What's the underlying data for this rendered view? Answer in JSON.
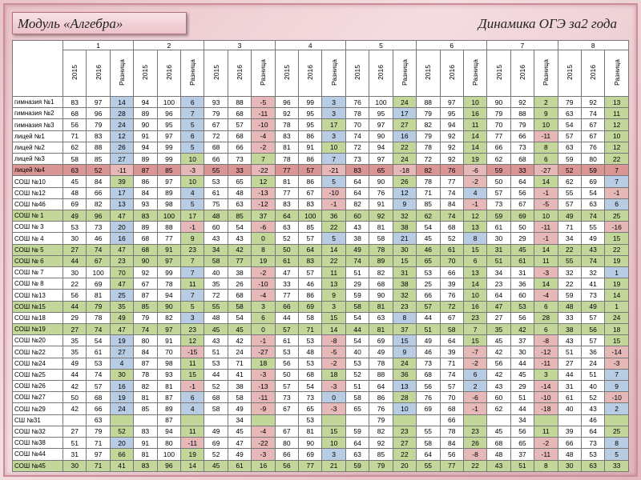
{
  "header": {
    "title": "Модуль «Алгебра»",
    "subtitle": "Динамика ОГЭ за2 года"
  },
  "table": {
    "groups": [
      "1",
      "2",
      "3",
      "4",
      "5",
      "6",
      "7",
      "8"
    ],
    "columns": [
      "2015",
      "2016",
      "Разница"
    ],
    "colors": {
      "positive_high": "#c4d79b",
      "positive_low": "#b8cce4",
      "negative": "#e6b8b7"
    },
    "rows": [
      {
        "name": "гимназия №1",
        "values": [
          83,
          97,
          14,
          94,
          100,
          6,
          93,
          88,
          -5,
          96,
          99,
          3,
          76,
          100,
          24,
          88,
          97,
          10,
          90,
          92,
          2,
          79,
          92,
          13
        ]
      },
      {
        "name": "гимназия №2",
        "values": [
          68,
          96,
          28,
          89,
          96,
          7,
          79,
          68,
          -11,
          92,
          95,
          3,
          78,
          95,
          17,
          79,
          95,
          16,
          79,
          88,
          9,
          63,
          74,
          11
        ]
      },
      {
        "name": "гимназия №3",
        "values": [
          56,
          79,
          24,
          90,
          95,
          5,
          67,
          57,
          -10,
          78,
          95,
          17,
          70,
          97,
          27,
          82,
          94,
          11,
          70,
          79,
          10,
          54,
          67,
          12
        ]
      },
      {
        "name": "лицей №1",
        "values": [
          71,
          83,
          12,
          91,
          97,
          6,
          72,
          68,
          -4,
          83,
          86,
          3,
          74,
          90,
          16,
          79,
          92,
          14,
          77,
          66,
          -11,
          57,
          67,
          10
        ]
      },
      {
        "name": "лицей №2",
        "values": [
          62,
          88,
          26,
          94,
          99,
          5,
          68,
          66,
          -2,
          81,
          91,
          10,
          72,
          94,
          22,
          78,
          92,
          14,
          66,
          73,
          8,
          63,
          76,
          12
        ]
      },
      {
        "name": "лицей №3",
        "values": [
          58,
          85,
          27,
          89,
          99,
          10,
          66,
          73,
          7,
          78,
          86,
          7,
          73,
          97,
          24,
          72,
          92,
          19,
          62,
          68,
          6,
          59,
          80,
          22
        ]
      },
      {
        "name": "лицей №4",
        "highlight": "#da9694",
        "values": [
          63,
          52,
          -11,
          87,
          85,
          -3,
          55,
          33,
          -22,
          77,
          57,
          -21,
          83,
          65,
          -18,
          82,
          76,
          -6,
          59,
          33,
          -27,
          52,
          59,
          7
        ]
      },
      {
        "name": "СОШ №10",
        "values": [
          45,
          84,
          39,
          86,
          97,
          10,
          53,
          65,
          12,
          81,
          86,
          5,
          64,
          90,
          26,
          78,
          77,
          -2,
          50,
          64,
          14,
          62,
          69,
          7
        ]
      },
      {
        "name": "СОШ №12",
        "values": [
          48,
          66,
          17,
          84,
          89,
          4,
          61,
          48,
          -13,
          77,
          67,
          -10,
          64,
          76,
          12,
          71,
          74,
          4,
          57,
          56,
          -1,
          55,
          54,
          -1
        ]
      },
      {
        "name": "СОШ №46",
        "values": [
          69,
          82,
          13,
          93,
          98,
          5,
          75,
          63,
          -12,
          83,
          83,
          -1,
          82,
          91,
          9,
          85,
          84,
          -1,
          73,
          67,
          -5,
          57,
          63,
          6
        ]
      },
      {
        "name": "СОШ № 1",
        "highlight": "#c4d79b",
        "values": [
          49,
          96,
          47,
          83,
          100,
          17,
          48,
          85,
          37,
          64,
          100,
          36,
          60,
          92,
          32,
          62,
          74,
          12,
          59,
          69,
          10,
          49,
          74,
          25
        ]
      },
      {
        "name": "СОШ № 3",
        "values": [
          53,
          73,
          20,
          89,
          88,
          -1,
          60,
          54,
          -6,
          63,
          85,
          22,
          43,
          81,
          38,
          54,
          68,
          13,
          61,
          50,
          -11,
          71,
          55,
          -16
        ]
      },
      {
        "name": "СОШ № 4",
        "values": [
          30,
          46,
          16,
          68,
          77,
          9,
          43,
          43,
          0,
          52,
          57,
          5,
          38,
          58,
          21,
          45,
          52,
          8,
          30,
          29,
          -1,
          34,
          49,
          15
        ]
      },
      {
        "name": "СОШ № 5",
        "highlight": "#c4d79b",
        "values": [
          27,
          74,
          47,
          68,
          91,
          23,
          34,
          42,
          8,
          50,
          64,
          14,
          49,
          78,
          30,
          46,
          61,
          15,
          31,
          45,
          14,
          22,
          43,
          22
        ]
      },
      {
        "name": "СОШ № 6",
        "highlight": "#c4d79b",
        "values": [
          44,
          67,
          23,
          90,
          97,
          7,
          58,
          77,
          19,
          61,
          83,
          22,
          74,
          89,
          15,
          65,
          70,
          6,
          51,
          61,
          11,
          55,
          74,
          19
        ]
      },
      {
        "name": "СОШ № 7",
        "values": [
          30,
          100,
          70,
          92,
          99,
          7,
          40,
          38,
          -2,
          47,
          57,
          11,
          51,
          82,
          31,
          53,
          66,
          13,
          34,
          31,
          -3,
          32,
          32,
          1
        ]
      },
      {
        "name": "СОШ № 8",
        "values": [
          22,
          69,
          47,
          67,
          78,
          11,
          35,
          26,
          -10,
          33,
          46,
          13,
          29,
          68,
          38,
          25,
          39,
          14,
          23,
          36,
          14,
          22,
          41,
          19
        ]
      },
      {
        "name": "СОШ №13",
        "values": [
          56,
          81,
          25,
          87,
          94,
          7,
          72,
          68,
          -4,
          77,
          86,
          9,
          59,
          90,
          32,
          66,
          76,
          10,
          64,
          60,
          -4,
          59,
          73,
          14
        ]
      },
      {
        "name": "СОШ №15",
        "highlight": "#c4d79b",
        "values": [
          44,
          79,
          35,
          85,
          90,
          5,
          55,
          58,
          3,
          66,
          69,
          3,
          58,
          81,
          23,
          57,
          72,
          16,
          47,
          53,
          6,
          48,
          49,
          1
        ]
      },
      {
        "name": "СОШ №18",
        "values": [
          29,
          78,
          49,
          79,
          82,
          3,
          48,
          54,
          6,
          44,
          58,
          15,
          54,
          63,
          8,
          44,
          67,
          23,
          27,
          56,
          28,
          33,
          57,
          24
        ]
      },
      {
        "name": "СОШ №19",
        "highlight": "#c4d79b",
        "values": [
          27,
          74,
          47,
          74,
          97,
          23,
          45,
          45,
          0,
          57,
          71,
          14,
          44,
          81,
          37,
          51,
          58,
          7,
          35,
          42,
          6,
          38,
          56,
          18
        ]
      },
      {
        "name": "СОШ №20",
        "values": [
          35,
          54,
          19,
          80,
          91,
          12,
          43,
          42,
          -1,
          61,
          53,
          -8,
          54,
          69,
          15,
          49,
          64,
          15,
          45,
          37,
          -8,
          43,
          57,
          15
        ]
      },
      {
        "name": "СОШ №22",
        "values": [
          35,
          61,
          27,
          84,
          70,
          -15,
          51,
          24,
          -27,
          53,
          48,
          -5,
          40,
          49,
          9,
          46,
          39,
          -7,
          42,
          30,
          -12,
          51,
          36,
          -14
        ]
      },
      {
        "name": "СОШ №24",
        "values": [
          49,
          53,
          4,
          87,
          98,
          11,
          53,
          71,
          18,
          56,
          53,
          -2,
          53,
          78,
          24,
          73,
          71,
          -2,
          56,
          44,
          -11,
          27,
          24,
          -3
        ]
      },
      {
        "name": "СОШ №25",
        "values": [
          44,
          74,
          30,
          78,
          93,
          15,
          44,
          41,
          -3,
          50,
          68,
          18,
          52,
          88,
          36,
          68,
          74,
          6,
          42,
          45,
          3,
          44,
          51,
          7
        ]
      },
      {
        "name": "СОШ №26",
        "values": [
          42,
          57,
          16,
          82,
          81,
          -1,
          52,
          38,
          -13,
          57,
          54,
          -3,
          51,
          64,
          13,
          56,
          57,
          2,
          43,
          29,
          -14,
          31,
          40,
          9
        ]
      },
      {
        "name": "СОШ №27",
        "values": [
          50,
          68,
          19,
          81,
          87,
          6,
          68,
          58,
          -11,
          73,
          73,
          0,
          58,
          86,
          28,
          76,
          70,
          -6,
          60,
          51,
          -10,
          61,
          52,
          -10
        ]
      },
      {
        "name": "СОШ №29",
        "values": [
          42,
          66,
          24,
          85,
          89,
          4,
          58,
          49,
          -9,
          67,
          65,
          -3,
          65,
          76,
          10,
          69,
          68,
          -1,
          62,
          44,
          -18,
          40,
          43,
          2
        ]
      },
      {
        "name": "СШ №31",
        "values": [
          null,
          63,
          null,
          null,
          87,
          null,
          null,
          34,
          null,
          null,
          53,
          null,
          null,
          79,
          null,
          null,
          66,
          null,
          null,
          34,
          null,
          null,
          46,
          null
        ]
      },
      {
        "name": "СОШ №32",
        "values": [
          27,
          79,
          52,
          83,
          94,
          11,
          49,
          45,
          -4,
          67,
          81,
          15,
          59,
          82,
          23,
          55,
          78,
          23,
          45,
          56,
          11,
          39,
          64,
          25
        ]
      },
      {
        "name": "СОШ №38",
        "values": [
          51,
          71,
          20,
          91,
          80,
          -11,
          69,
          47,
          -22,
          80,
          90,
          10,
          64,
          92,
          27,
          58,
          84,
          26,
          68,
          65,
          -2,
          66,
          73,
          8
        ]
      },
      {
        "name": "СОШ №44",
        "values": [
          31,
          97,
          66,
          81,
          100,
          19,
          52,
          49,
          -3,
          66,
          69,
          3,
          63,
          85,
          22,
          64,
          56,
          -8,
          48,
          37,
          -11,
          48,
          53,
          5
        ]
      },
      {
        "name": "СОШ №45",
        "highlight": "#c4d79b",
        "values": [
          30,
          71,
          41,
          83,
          96,
          14,
          45,
          61,
          16,
          56,
          77,
          21,
          59,
          79,
          20,
          55,
          77,
          22,
          43,
          51,
          8,
          30,
          63,
          33
        ]
      }
    ]
  }
}
